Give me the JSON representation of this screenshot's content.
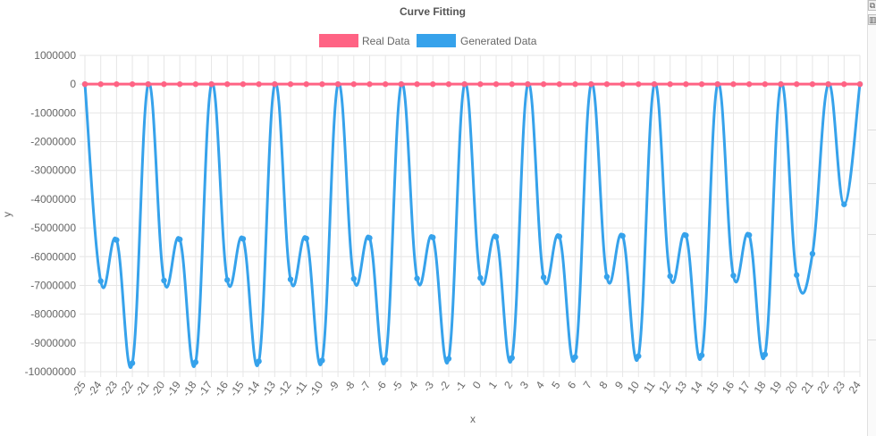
{
  "colors": {
    "real": "#ff6384",
    "generated": "#36a2eb",
    "grid": "#e6e6e6",
    "text": "#666666",
    "title": "#555555"
  },
  "edge_icons": [
    "copy-icon",
    "trash-icon"
  ],
  "chart_data": {
    "type": "line",
    "title": "Curve Fitting",
    "xlabel": "x",
    "ylabel": "y",
    "ylim": [
      -10000000,
      1000000
    ],
    "yticks": [
      1000000,
      0,
      -1000000,
      -2000000,
      -3000000,
      -4000000,
      -5000000,
      -6000000,
      -7000000,
      -8000000,
      -9000000,
      -10000000
    ],
    "grid": true,
    "legend": "top-center",
    "x": [
      -25,
      -24,
      -23,
      -22,
      -21,
      -20,
      -19,
      -18,
      -17,
      -16,
      -15,
      -14,
      -13,
      -12,
      -11,
      -10,
      -9,
      -8,
      -7,
      -6,
      -5,
      -4,
      -3,
      -2,
      -1,
      0,
      1,
      2,
      3,
      4,
      5,
      6,
      7,
      8,
      9,
      10,
      11,
      12,
      13,
      14,
      15,
      16,
      17,
      18,
      19,
      20,
      21,
      22,
      23,
      24
    ],
    "series": [
      {
        "name": "Real Data",
        "values": [
          0,
          0,
          0,
          0,
          0,
          0,
          0,
          0,
          0,
          0,
          0,
          0,
          0,
          0,
          0,
          0,
          0,
          0,
          0,
          0,
          0,
          0,
          0,
          0,
          0,
          0,
          0,
          0,
          0,
          0,
          0,
          0,
          0,
          0,
          0,
          0,
          0,
          0,
          0,
          0,
          0,
          0,
          0,
          0,
          0,
          0,
          0,
          0,
          0,
          0
        ]
      },
      {
        "name": "Generated Data",
        "values": [
          0,
          -6850000,
          -5420000,
          -9700000,
          0,
          -6830000,
          -5400000,
          -9670000,
          0,
          -6810000,
          -5380000,
          -9640000,
          0,
          -6790000,
          -5370000,
          -9610000,
          0,
          -6770000,
          -5350000,
          -9580000,
          0,
          -6760000,
          -5330000,
          -9550000,
          0,
          -6740000,
          -5310000,
          -9520000,
          0,
          -6720000,
          -5300000,
          -9490000,
          0,
          -6700000,
          -5280000,
          -9460000,
          0,
          -6680000,
          -5260000,
          -9430000,
          0,
          -6660000,
          -5250000,
          -9400000,
          0,
          -6640000,
          -5900000,
          0,
          -4180000,
          0
        ]
      }
    ]
  }
}
